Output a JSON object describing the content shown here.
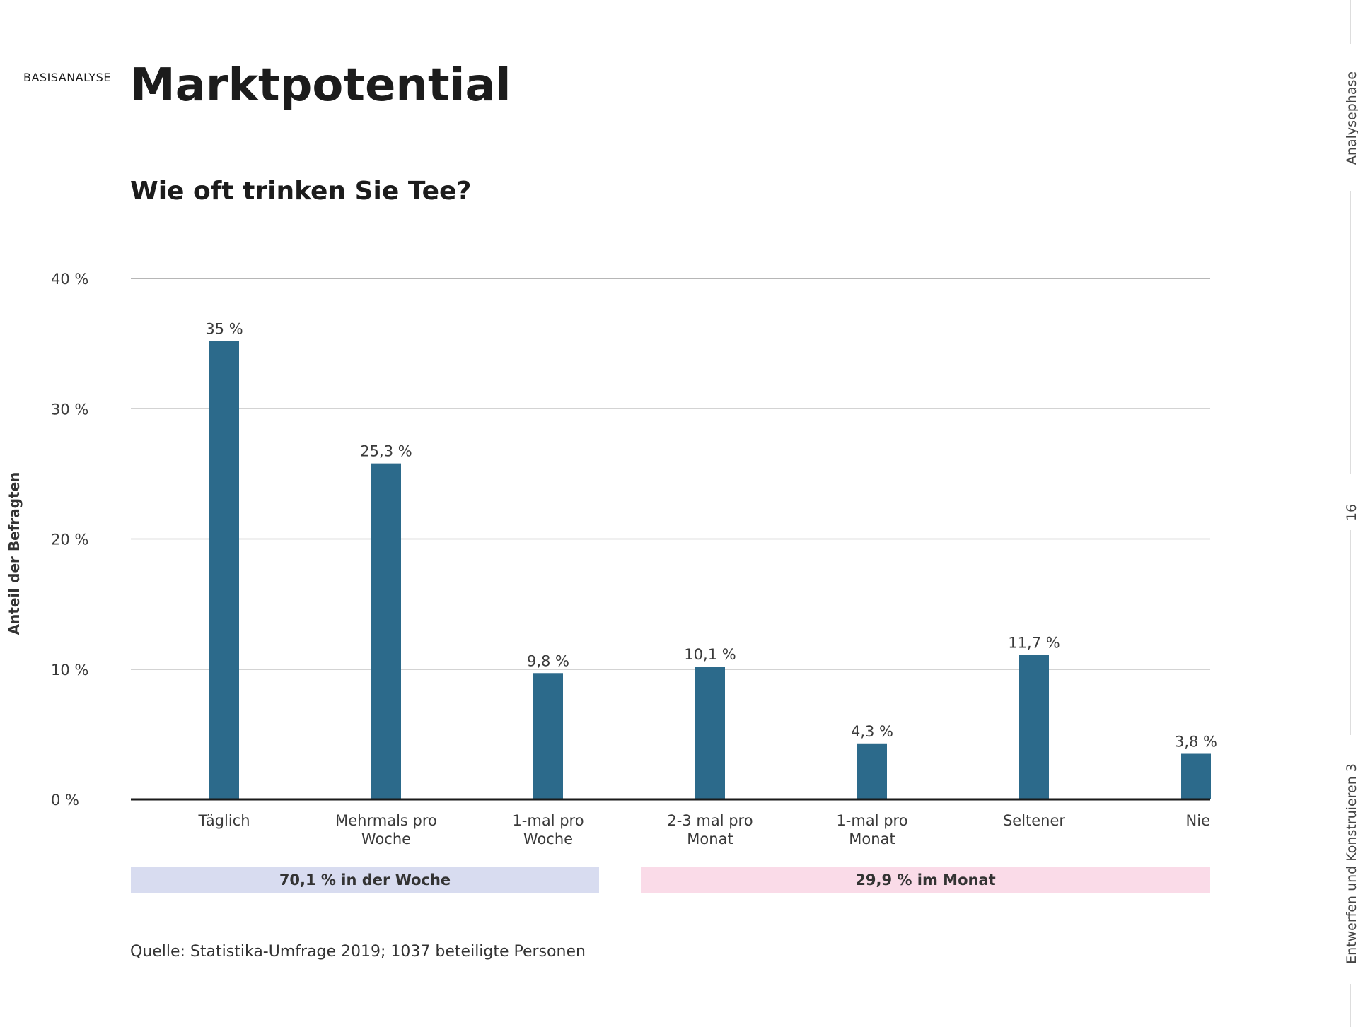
{
  "header": {
    "section_label": "BASISANALYSE",
    "title": "Marktpotential"
  },
  "side": {
    "phase": "Analysephase",
    "page_number": "16",
    "course": "Entwerfen und Konstruieren 3"
  },
  "colors": {
    "bar": "#2c6a8b",
    "week_band": "#d8dcf0",
    "month_band": "#fadbe8"
  },
  "chart_data": {
    "type": "bar",
    "title": "Wie oft trinken Sie Tee?",
    "xlabel": "",
    "ylabel": "Anteil der Befragten",
    "ylim": [
      0,
      40
    ],
    "yticks": [
      0,
      10,
      20,
      30,
      40
    ],
    "ytick_labels": [
      "0 %",
      "10 %",
      "20 %",
      "30 %",
      "40 %"
    ],
    "grid": true,
    "categories": [
      [
        "Täglich"
      ],
      [
        "Mehrmals pro",
        "Woche"
      ],
      [
        "1-mal pro",
        "Woche"
      ],
      [
        "2-3 mal pro",
        "Monat"
      ],
      [
        "1-mal pro",
        "Monat"
      ],
      [
        "Seltener"
      ],
      [
        "Nie"
      ]
    ],
    "values": [
      35,
      25.3,
      9.8,
      10.1,
      4.3,
      11.7,
      3.8
    ],
    "bar_heights_drawn": [
      35.2,
      25.8,
      9.7,
      10.2,
      4.3,
      11.1,
      3.5
    ],
    "value_labels": [
      "35 %",
      "25,3 %",
      "9,8 %",
      "10,1 %",
      "4,3 %",
      "11,7 %",
      "3,8 %"
    ],
    "groups": [
      {
        "label": "70,1 % in der Woche"
      },
      {
        "label": "29,9 % im Monat"
      }
    ]
  },
  "source": "Quelle: Statistika-Umfrage 2019; 1037 beteiligte Personen"
}
